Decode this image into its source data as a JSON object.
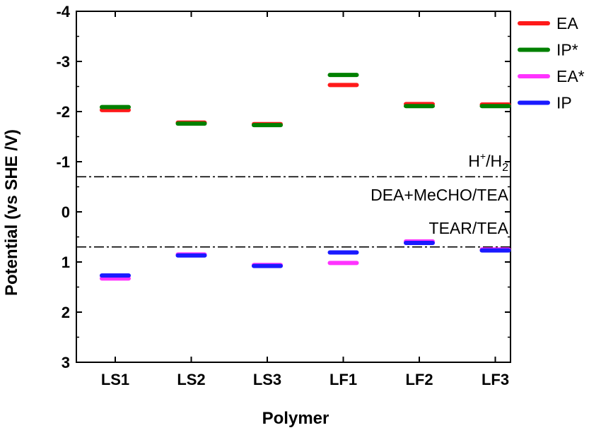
{
  "chart_data": {
    "type": "scatter",
    "xlabel": "Polymer",
    "ylabel": "Potential (vs SHE /V)",
    "categories": [
      "LS1",
      "LS2",
      "LS3",
      "LF1",
      "LF2",
      "LF3"
    ],
    "ylim": [
      -4,
      3
    ],
    "y_inverted": true,
    "yticks": [
      "-4",
      "-3",
      "-2",
      "-1",
      "0",
      "1",
      "2",
      "3"
    ],
    "grid": false,
    "legend_position": "top-right, outside plot",
    "series": [
      {
        "name": "EA",
        "color": "#ff1a1a",
        "values": [
          -2.03,
          -1.78,
          -1.75,
          -2.53,
          -2.15,
          -2.14
        ]
      },
      {
        "name": "IP*",
        "color": "#008000",
        "values": [
          -2.09,
          -1.76,
          -1.73,
          -2.73,
          -2.11,
          -2.11
        ]
      },
      {
        "name": "EA*",
        "color": "#ff33ff",
        "values": [
          1.33,
          0.85,
          1.06,
          1.02,
          0.59,
          0.75
        ]
      },
      {
        "name": "IP",
        "color": "#1a1aff",
        "values": [
          1.27,
          0.87,
          1.08,
          0.81,
          0.62,
          0.77
        ]
      }
    ],
    "reference_lines": [
      {
        "name": "H+/H2",
        "label_main": "H",
        "label_sup": "+",
        "label_mid": "/H",
        "label_sub": "2",
        "value": -0.7
      },
      {
        "name": "TEAR/TEA",
        "label": "TEAR/TEA",
        "value": 0.7
      }
    ],
    "annotations": [
      {
        "text": "DEA+MeCHO/TEA"
      }
    ]
  }
}
